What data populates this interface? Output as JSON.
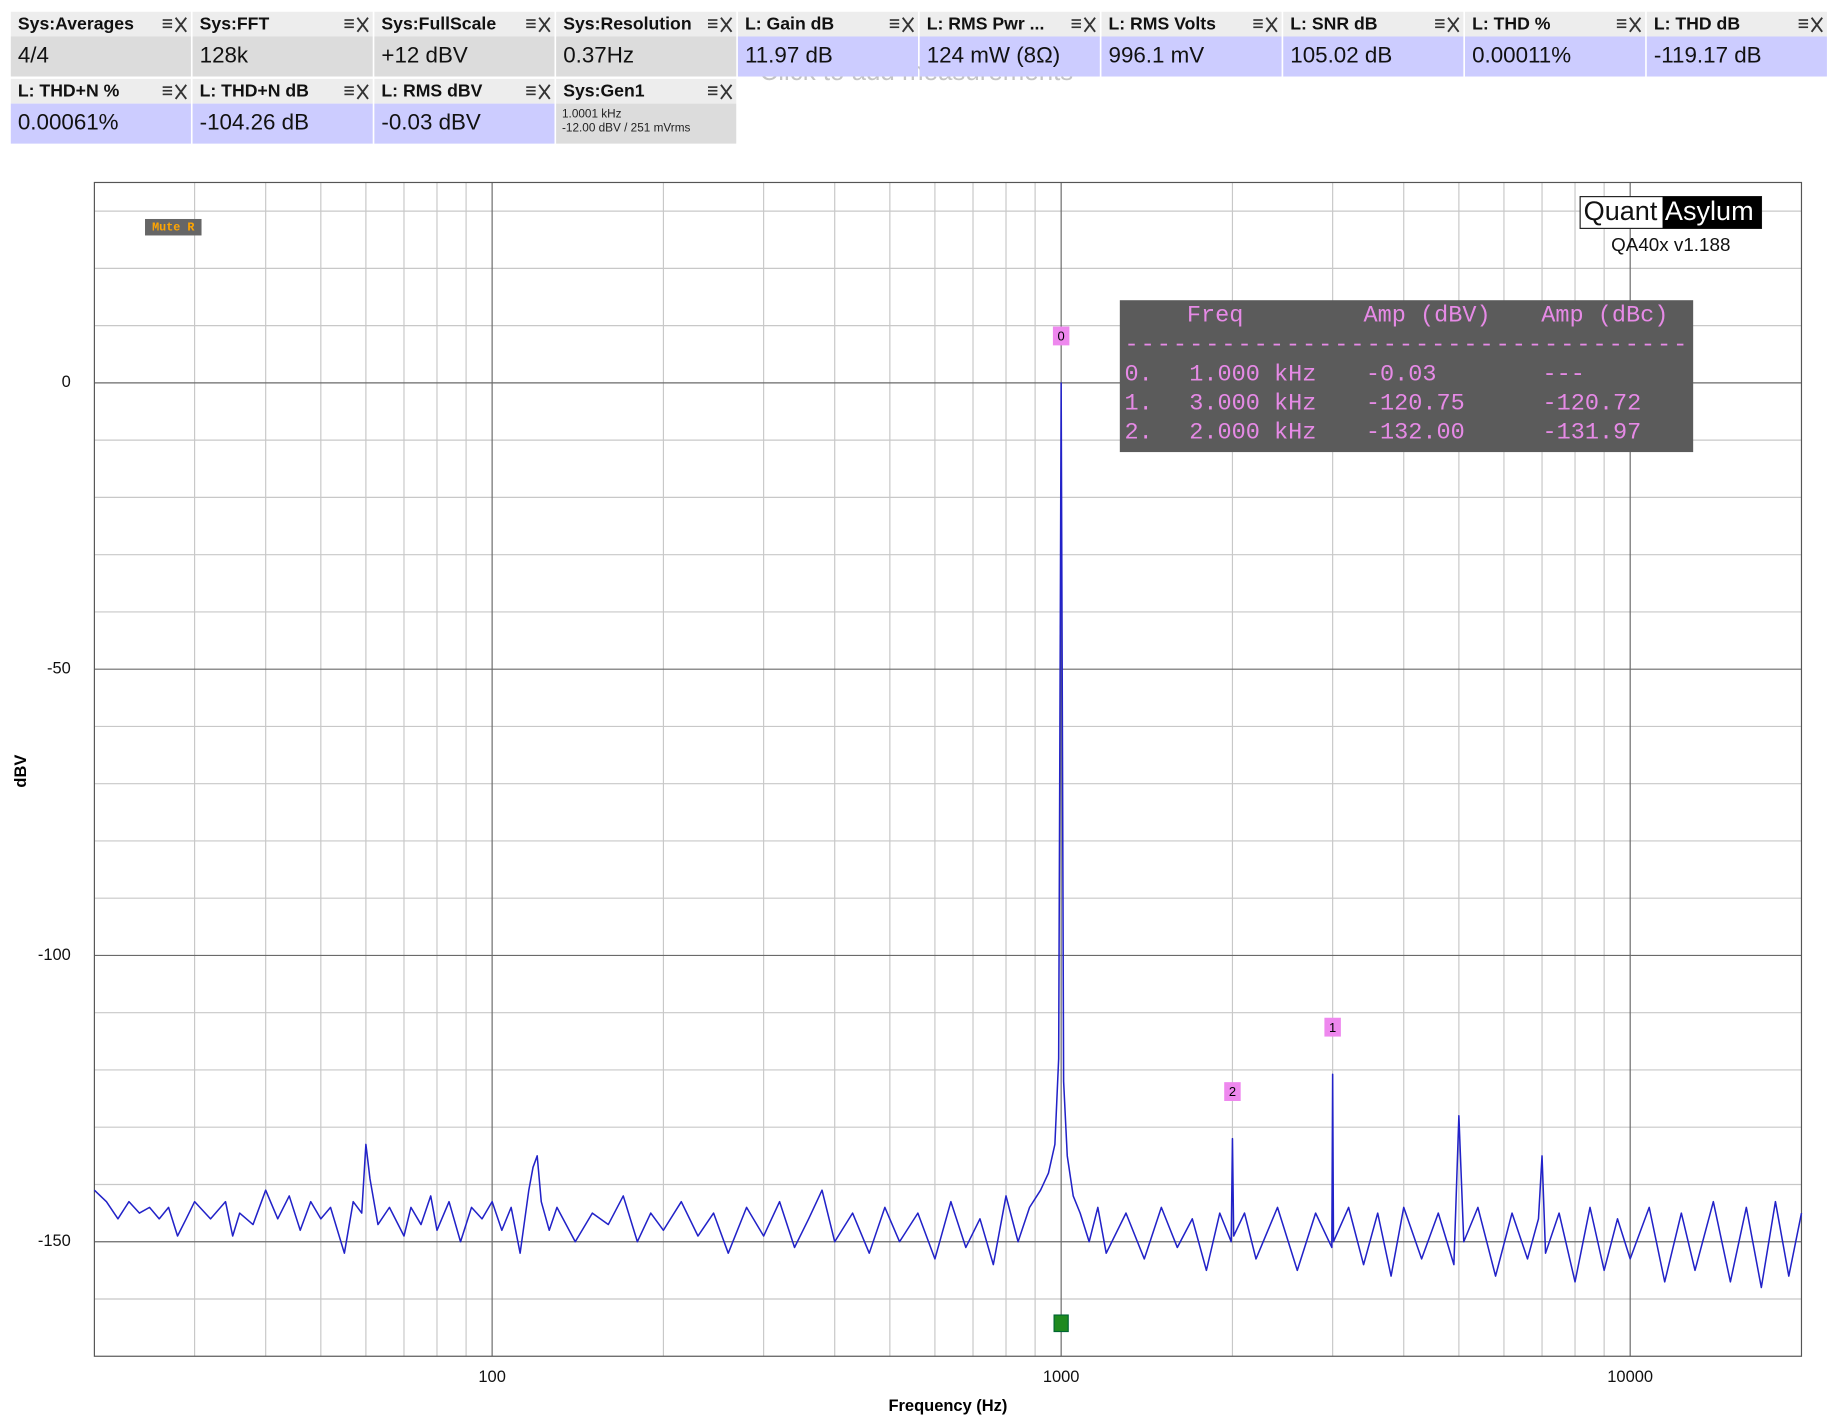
{
  "tiles": [
    {
      "title": "Sys:Averages",
      "value": "4/4"
    },
    {
      "title": "Sys:FFT",
      "value": "128k"
    },
    {
      "title": "Sys:FullScale",
      "value": "+12 dBV"
    },
    {
      "title": "Sys:Resolution",
      "value": "0.37Hz"
    },
    {
      "title": "L: Gain dB",
      "value": "11.97 dB"
    },
    {
      "title": "L: RMS Pwr ...",
      "value": "124 mW (8Ω)"
    },
    {
      "title": "L: RMS Volts",
      "value": "996.1 mV"
    },
    {
      "title": "L: SNR dB",
      "value": "105.02 dB"
    },
    {
      "title": "L: THD %",
      "value": "0.00011%"
    },
    {
      "title": "L: THD dB",
      "value": "-119.17 dB"
    },
    {
      "title": "L: THD+N %",
      "value": "0.00061%"
    },
    {
      "title": "L: THD+N dB",
      "value": "-104.26 dB"
    },
    {
      "title": "L: RMS dBV",
      "value": "-0.03 dBV"
    },
    {
      "title": "Sys:Gen1",
      "value": [
        "1.0001 kHz",
        "-12.00 dBV  / 251 mVrms"
      ]
    }
  ],
  "hint": "Click to add measurements",
  "mute_label": "Mute R",
  "logo": {
    "left": "Quant",
    "right": "Asylum",
    "version": "QA40x v1.188"
  },
  "peak_table": {
    "header": [
      "Freq",
      "Amp (dBV)",
      "Amp (dBc)"
    ],
    "separator": "-----------------------------------",
    "rows": [
      [
        "0.",
        "1.000 kHz",
        "-0.03",
        "---"
      ],
      [
        "1.",
        "3.000 kHz",
        "-120.75",
        "-120.72"
      ],
      [
        "2.",
        "2.000 kHz",
        "-132.00",
        "-131.97"
      ]
    ]
  },
  "chart_data": {
    "type": "line",
    "x_label": "Frequency (Hz)",
    "y_label": "dBV",
    "xscale": "log",
    "grid": true,
    "xlim": [
      20,
      20000
    ],
    "ylim": [
      -170,
      35
    ],
    "xticks": [
      100,
      1000,
      10000
    ],
    "xminor_ticks": [
      30,
      40,
      50,
      60,
      70,
      80,
      90,
      200,
      300,
      400,
      500,
      600,
      700,
      800,
      900,
      2000,
      3000,
      4000,
      5000,
      6000,
      7000,
      8000,
      9000
    ],
    "yticks": [
      -150,
      -100,
      -50,
      0
    ],
    "yminor_ticks": [
      -160,
      -140,
      -130,
      -120,
      -110,
      -90,
      -80,
      -70,
      -60,
      -40,
      -30,
      -20,
      -10,
      10,
      20,
      30
    ],
    "markers": [
      {
        "label": "0",
        "x": 1000
      },
      {
        "label": "1",
        "x": 3000
      },
      {
        "label": "2",
        "x": 2000
      }
    ],
    "x": [
      20,
      21,
      22,
      23,
      24,
      25,
      26,
      27,
      28,
      29,
      30,
      32,
      34,
      35,
      36,
      38,
      40,
      42,
      44,
      46,
      48,
      50,
      52,
      55,
      57,
      59,
      60,
      61,
      63,
      66,
      70,
      72,
      75,
      78,
      80,
      84,
      88,
      92,
      96,
      100,
      104,
      108,
      112,
      116,
      118,
      120,
      122,
      126,
      130,
      140,
      150,
      160,
      170,
      180,
      190,
      200,
      215,
      230,
      245,
      260,
      280,
      300,
      320,
      340,
      360,
      380,
      400,
      430,
      460,
      490,
      520,
      560,
      600,
      640,
      680,
      720,
      760,
      800,
      840,
      880,
      920,
      950,
      975,
      990,
      995,
      1000,
      1005,
      1010,
      1025,
      1050,
      1080,
      1120,
      1160,
      1200,
      1300,
      1400,
      1500,
      1600,
      1700,
      1800,
      1900,
      1990,
      2000,
      2010,
      2100,
      2200,
      2400,
      2600,
      2800,
      2990,
      3000,
      3010,
      3200,
      3400,
      3600,
      3800,
      4000,
      4300,
      4600,
      4900,
      5000,
      5100,
      5400,
      5800,
      6200,
      6600,
      6900,
      7000,
      7100,
      7500,
      8000,
      8500,
      9000,
      9500,
      10000,
      10800,
      11500,
      12300,
      13000,
      14000,
      15000,
      16000,
      17000,
      18000,
      19000,
      20000
    ],
    "series": [
      {
        "color": "#2222c8",
        "values": [
          -141,
          -143,
          -146,
          -143,
          -145,
          -144,
          -146,
          -144,
          -149,
          -146,
          -143,
          -146,
          -143,
          -149,
          -145,
          -147,
          -141,
          -146,
          -142,
          -148,
          -143,
          -146,
          -144,
          -152,
          -143,
          -145,
          -133,
          -139,
          -147,
          -144,
          -149,
          -144,
          -147,
          -142,
          -148,
          -143,
          -150,
          -144,
          -146,
          -143,
          -148,
          -144,
          -152,
          -141,
          -137,
          -135,
          -143,
          -148,
          -144,
          -150,
          -145,
          -147,
          -142,
          -150,
          -145,
          -148,
          -143,
          -149,
          -145,
          -152,
          -144,
          -149,
          -143,
          -151,
          -146,
          -141,
          -150,
          -145,
          -152,
          -144,
          -150,
          -145,
          -153,
          -143,
          -151,
          -146,
          -154,
          -142,
          -150,
          -144,
          -141,
          -138,
          -133,
          -118,
          -60,
          -0.03,
          -60,
          -122,
          -135,
          -142,
          -145,
          -150,
          -144,
          -152,
          -145,
          -153,
          -144,
          -151,
          -146,
          -155,
          -145,
          -150,
          -132,
          -149,
          -145,
          -153,
          -144,
          -155,
          -145,
          -151,
          -120.75,
          -150,
          -144,
          -154,
          -145,
          -156,
          -144,
          -153,
          -145,
          -154,
          -128,
          -150,
          -144,
          -156,
          -145,
          -153,
          -146,
          -135,
          -152,
          -145,
          -157,
          -144,
          -155,
          -146,
          -153,
          -144,
          -157,
          -145,
          -155,
          -143,
          -157,
          -144,
          -158,
          -143,
          -156,
          -145
        ]
      }
    ]
  }
}
